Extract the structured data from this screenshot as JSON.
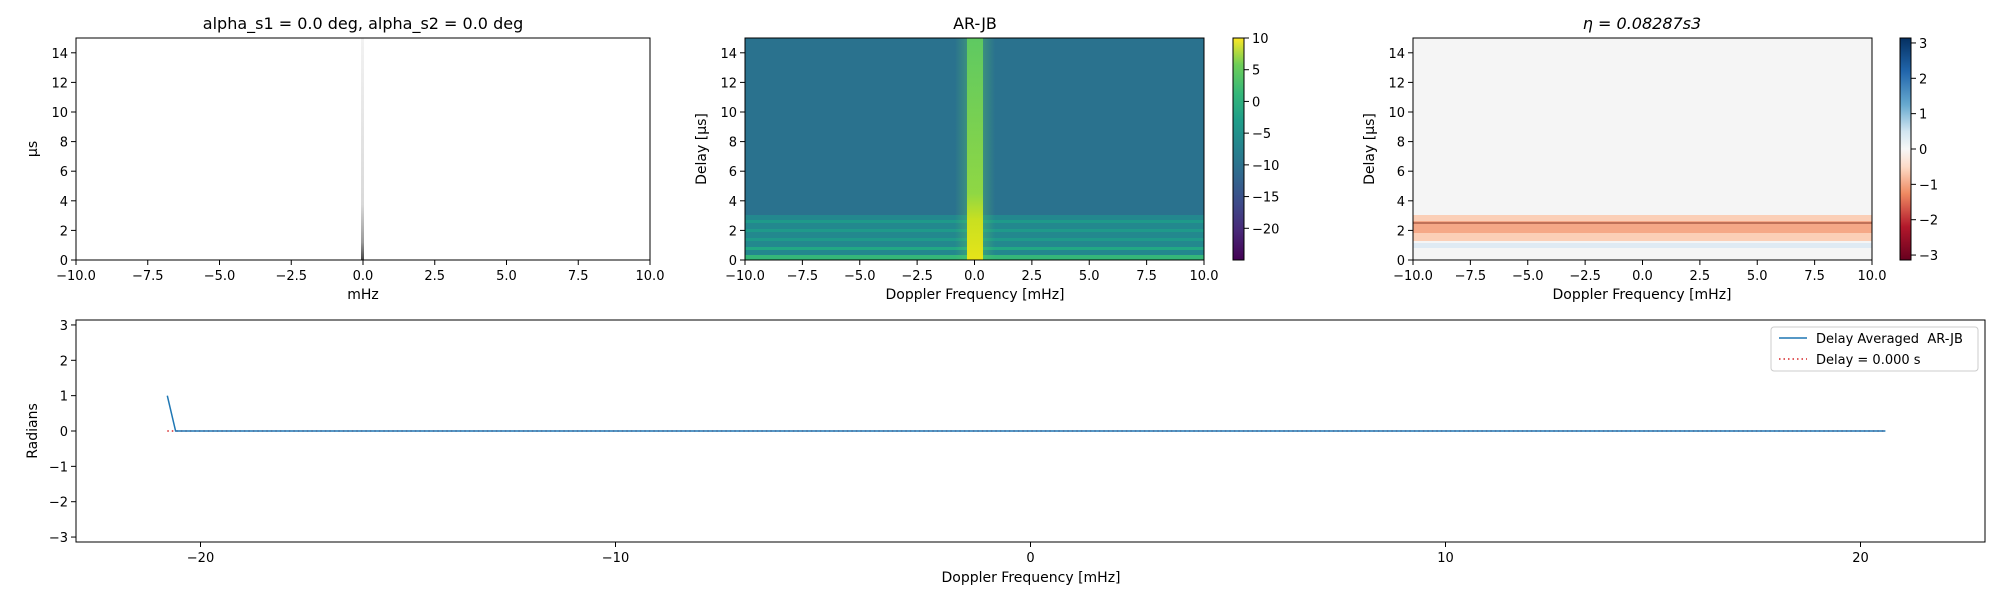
{
  "colors": {
    "series_line": "#1f77b4",
    "reference_line": "#d62728",
    "axes": "#000000",
    "viridis_bright": "#fde725",
    "viridis_dark": "#440154"
  },
  "chart_data": [
    {
      "type": "heatmap",
      "title": "alpha_s1 = 0.0 deg, alpha_s2 = 0.0 deg",
      "xlabel": "mHz",
      "ylabel": "µs",
      "xlim": [
        -10,
        10
      ],
      "ylim": [
        0,
        15
      ],
      "x_ticks": [
        "−10.0",
        "−7.5",
        "−5.0",
        "−2.5",
        "0.0",
        "2.5",
        "5.0",
        "7.5",
        "10.0"
      ],
      "y_ticks": [
        "0",
        "2",
        "4",
        "6",
        "8",
        "10",
        "12",
        "14"
      ],
      "colormap": "Greys",
      "grid": false,
      "feature": "thin grey vertical line at 0 mHz, darker near delay 0"
    },
    {
      "type": "heatmap",
      "title": "AR-JB",
      "xlabel": "Doppler Frequency [mHz]",
      "ylabel": "Delay [µs]",
      "xlim": [
        -10,
        10
      ],
      "ylim": [
        0,
        15
      ],
      "x_ticks": [
        "−10.0",
        "−7.5",
        "−5.0",
        "−2.5",
        "0.0",
        "2.5",
        "5.0",
        "7.5",
        "10.0"
      ],
      "y_ticks": [
        "0",
        "2",
        "4",
        "6",
        "8",
        "10",
        "12",
        "14"
      ],
      "colormap": "viridis",
      "colorbar": {
        "range": [
          -25,
          10
        ],
        "ticks": [
          "10",
          "5",
          "0",
          "−5",
          "−10",
          "−15",
          "−20"
        ]
      },
      "grid": false,
      "feature": "bright vertical band at 0 mHz; horizontal banding below delay 3"
    },
    {
      "type": "heatmap",
      "title": "η = 0.08287s3",
      "xlabel": "Doppler Frequency [mHz]",
      "ylabel": "Delay [µs]",
      "xlim": [
        -10,
        10
      ],
      "ylim": [
        0,
        15
      ],
      "x_ticks": [
        "−10.0",
        "−7.5",
        "−5.0",
        "−2.5",
        "0.0",
        "2.5",
        "5.0",
        "7.5",
        "10.0"
      ],
      "y_ticks": [
        "0",
        "2",
        "4",
        "6",
        "8",
        "10",
        "12",
        "14"
      ],
      "colormap": "RdBu",
      "colorbar": {
        "range": [
          -3.14,
          3.14
        ],
        "ticks": [
          "3",
          "2",
          "1",
          "0",
          "−1",
          "−2",
          "−3"
        ]
      },
      "grid": false,
      "feature": "orange band between delay ~1.5 and ~3 with thin line at 2.5"
    },
    {
      "type": "line",
      "title": "",
      "xlabel": "Doppler Frequency [mHz]",
      "ylabel": "Radians",
      "xlim": [
        -23,
        23
      ],
      "ylim": [
        -3.14,
        3.14
      ],
      "x_ticks": [
        "−20",
        "−10",
        "0",
        "10",
        "20"
      ],
      "y_ticks": [
        "3",
        "2",
        "1",
        "0",
        "−1",
        "−2",
        "−3"
      ],
      "legend_position": "top-right",
      "grid": false,
      "series": [
        {
          "name": "Delay Averaged  AR-JB",
          "style": "solid",
          "x": [
            -20.8,
            -20.6,
            20.6
          ],
          "y": [
            1.0,
            0.0,
            0.0
          ]
        },
        {
          "name": "Delay = 0.000 s",
          "style": "dotted",
          "x": [
            -20.8,
            20.6
          ],
          "y": [
            0.0,
            0.0
          ]
        }
      ]
    }
  ]
}
